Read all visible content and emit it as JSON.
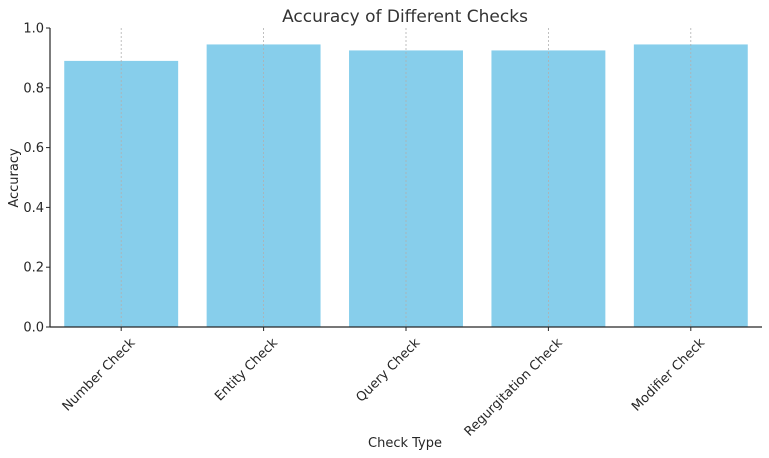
{
  "chart_data": {
    "type": "bar",
    "title": "Accuracy of Different Checks",
    "xlabel": "Check Type",
    "ylabel": "Accuracy",
    "categories": [
      "Number Check",
      "Entity Check",
      "Query Check",
      "Regurgitation Check",
      "Modifier Check"
    ],
    "values": [
      0.89,
      0.945,
      0.925,
      0.925,
      0.945
    ],
    "ylim": [
      0,
      1.0
    ],
    "yticks": [
      0.0,
      0.2,
      0.4,
      0.6,
      0.8,
      1.0
    ],
    "ytick_labels": [
      "0.0",
      "0.2",
      "0.4",
      "0.6",
      "0.8",
      "1.0"
    ],
    "grid": "x-dashed",
    "bar_color": "#87ceeb"
  }
}
